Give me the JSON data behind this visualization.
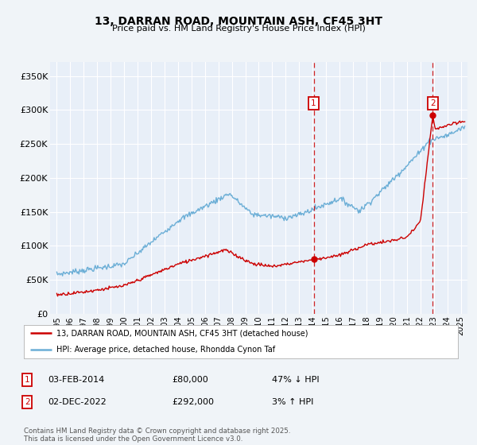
{
  "title": "13, DARRAN ROAD, MOUNTAIN ASH, CF45 3HT",
  "subtitle": "Price paid vs. HM Land Registry's House Price Index (HPI)",
  "background_color": "#f0f4f8",
  "plot_bg_color": "#e8eff8",
  "ylabel_ticks": [
    "£0",
    "£50K",
    "£100K",
    "£150K",
    "£200K",
    "£250K",
    "£300K",
    "£350K"
  ],
  "ytick_vals": [
    0,
    50000,
    100000,
    150000,
    200000,
    250000,
    300000,
    350000
  ],
  "ylim": [
    0,
    370000
  ],
  "xlim_start": 1994.5,
  "xlim_end": 2025.5,
  "hpi_color": "#6baed6",
  "price_color": "#cc0000",
  "marker1_date": 2014.08,
  "marker2_date": 2022.92,
  "marker1_price": 80000,
  "marker2_price": 292000,
  "legend_line1": "13, DARRAN ROAD, MOUNTAIN ASH, CF45 3HT (detached house)",
  "legend_line2": "HPI: Average price, detached house, Rhondda Cynon Taf",
  "table_row1": [
    "1",
    "03-FEB-2014",
    "£80,000",
    "47% ↓ HPI"
  ],
  "table_row2": [
    "2",
    "02-DEC-2022",
    "£292,000",
    "3% ↑ HPI"
  ],
  "footer": "Contains HM Land Registry data © Crown copyright and database right 2025.\nThis data is licensed under the Open Government Licence v3.0.",
  "grid_color": "#ffffff",
  "xtick_years": [
    1995,
    1996,
    1997,
    1998,
    1999,
    2000,
    2001,
    2002,
    2003,
    2004,
    2005,
    2006,
    2007,
    2008,
    2009,
    2010,
    2011,
    2012,
    2013,
    2014,
    2015,
    2016,
    2017,
    2018,
    2019,
    2020,
    2021,
    2022,
    2023,
    2024,
    2025
  ]
}
